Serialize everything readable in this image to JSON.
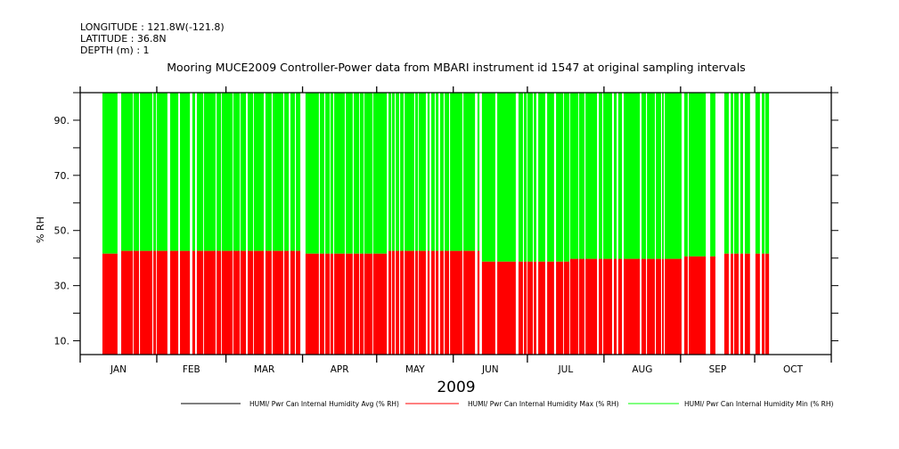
{
  "header": {
    "longitude": "LONGITUDE : 121.8W(-121.8)",
    "latitude": "LATITUDE : 36.8N",
    "depth": "DEPTH (m) : 1"
  },
  "chart_data": {
    "type": "area",
    "title": "Mooring MUCE2009 Controller-Power data from MBARI instrument id 1547 at original sampling intervals",
    "xlabel": "2009",
    "ylabel": "% RH",
    "ylim": [
      5,
      100
    ],
    "xlim_days": [
      0,
      304
    ],
    "yticks": [
      10,
      20,
      30,
      40,
      50,
      60,
      70,
      80,
      90,
      100
    ],
    "ytick_labels": [
      "10.",
      "30.",
      "50.",
      "70.",
      "90."
    ],
    "ytick_label_values": [
      10,
      30,
      50,
      70,
      90
    ],
    "month_starts": [
      0,
      31,
      59,
      90,
      120,
      151,
      181,
      212,
      243,
      273,
      304
    ],
    "month_labels": [
      "JAN",
      "FEB",
      "MAR",
      "APR",
      "MAY",
      "JUN",
      "JUL",
      "AUG",
      "SEP",
      "OCT"
    ],
    "colors": {
      "avg": "#000000",
      "max": "#ff0000",
      "min": "#00ff00"
    },
    "legend": [
      {
        "name": "HUMI/ Pwr Can Internal Humidity Avg (% RH)",
        "color": "#000000"
      },
      {
        "name": "HUMI/ Pwr Can Internal Humidity Max (% RH)",
        "color": "#ff0000"
      },
      {
        "name": "HUMI/ Pwr Can Internal Humidity Min (% RH)",
        "color": "#00ff00"
      }
    ],
    "legend_placement": "bottom",
    "levels": [
      [
        0,
        16,
        41.6
      ],
      [
        16,
        91,
        42.6
      ],
      [
        91,
        124,
        41.6
      ],
      [
        124,
        162,
        42.6
      ],
      [
        162,
        197,
        38.7
      ],
      [
        197,
        244,
        39.7
      ],
      [
        244,
        259,
        40.6
      ],
      [
        259,
        304,
        41.6
      ]
    ],
    "data_segments_days": [
      [
        9.0,
        15.1
      ],
      [
        16.6,
        21.3
      ],
      [
        21.6,
        23.8
      ],
      [
        24.2,
        29.2
      ],
      [
        29.6,
        30.7
      ],
      [
        31.0,
        35.3
      ],
      [
        36.4,
        39.7
      ],
      [
        40.4,
        44.4
      ],
      [
        45.4,
        46.5
      ],
      [
        47.2,
        49.8
      ],
      [
        50.1,
        54.8
      ],
      [
        55.2,
        57.0
      ],
      [
        57.3,
        61.7
      ],
      [
        62.0,
        64.6
      ],
      [
        64.9,
        67.1
      ],
      [
        67.8,
        70.0
      ],
      [
        70.3,
        74.3
      ],
      [
        75.0,
        77.5
      ],
      [
        77.9,
        82.2
      ],
      [
        82.6,
        84.4
      ],
      [
        85.1,
        86.9
      ],
      [
        87.3,
        89.1
      ],
      [
        91.2,
        96.6
      ],
      [
        97.0,
        98.8
      ],
      [
        99.2,
        101.0
      ],
      [
        101.3,
        102.4
      ],
      [
        102.8,
        107.1
      ],
      [
        107.5,
        110.3
      ],
      [
        110.7,
        112.9
      ],
      [
        113.2,
        114.7
      ],
      [
        115.0,
        118.3
      ],
      [
        118.6,
        124.1
      ],
      [
        124.8,
        125.9
      ],
      [
        126.2,
        127.3
      ],
      [
        127.7,
        129.1
      ],
      [
        129.5,
        130.9
      ],
      [
        131.3,
        135.2
      ],
      [
        135.6,
        136.7
      ],
      [
        137.0,
        139.9
      ],
      [
        140.6,
        141.4
      ],
      [
        142.1,
        143.5
      ],
      [
        143.9,
        145.0
      ],
      [
        145.7,
        147.1
      ],
      [
        147.5,
        149.3
      ],
      [
        149.7,
        154.7
      ],
      [
        155.1,
        159.8
      ],
      [
        160.8,
        161.6
      ],
      [
        162.6,
        168.0
      ],
      [
        168.8,
        176.3
      ],
      [
        177.4,
        179.2
      ],
      [
        179.6,
        180.7
      ],
      [
        181.0,
        183.2
      ],
      [
        183.6,
        184.6
      ],
      [
        185.4,
        188.2
      ],
      [
        189.0,
        191.8
      ],
      [
        192.6,
        195.5
      ],
      [
        195.8,
        198.0
      ],
      [
        198.3,
        201.6
      ],
      [
        201.9,
        204.1
      ],
      [
        204.5,
        209.2
      ],
      [
        209.9,
        211.3
      ],
      [
        211.7,
        215.3
      ],
      [
        216.0,
        217.1
      ],
      [
        217.8,
        219.3
      ],
      [
        220.0,
        226.5
      ],
      [
        227.2,
        229.0
      ],
      [
        229.4,
        232.6
      ],
      [
        233.0,
        235.1
      ],
      [
        235.5,
        236.2
      ],
      [
        236.6,
        243.4
      ],
      [
        244.5,
        245.9
      ],
      [
        246.3,
        253.2
      ],
      [
        255.0,
        257.1
      ],
      [
        260.7,
        262.5
      ],
      [
        263.3,
        264.3
      ],
      [
        264.7,
        266.5
      ],
      [
        267.2,
        268.3
      ],
      [
        269.0,
        271.1
      ],
      [
        273.3,
        275.1
      ],
      [
        275.9,
        277.0
      ],
      [
        277.3,
        278.8
      ]
    ],
    "min_value": 5,
    "max_value": 100,
    "grid": false
  }
}
